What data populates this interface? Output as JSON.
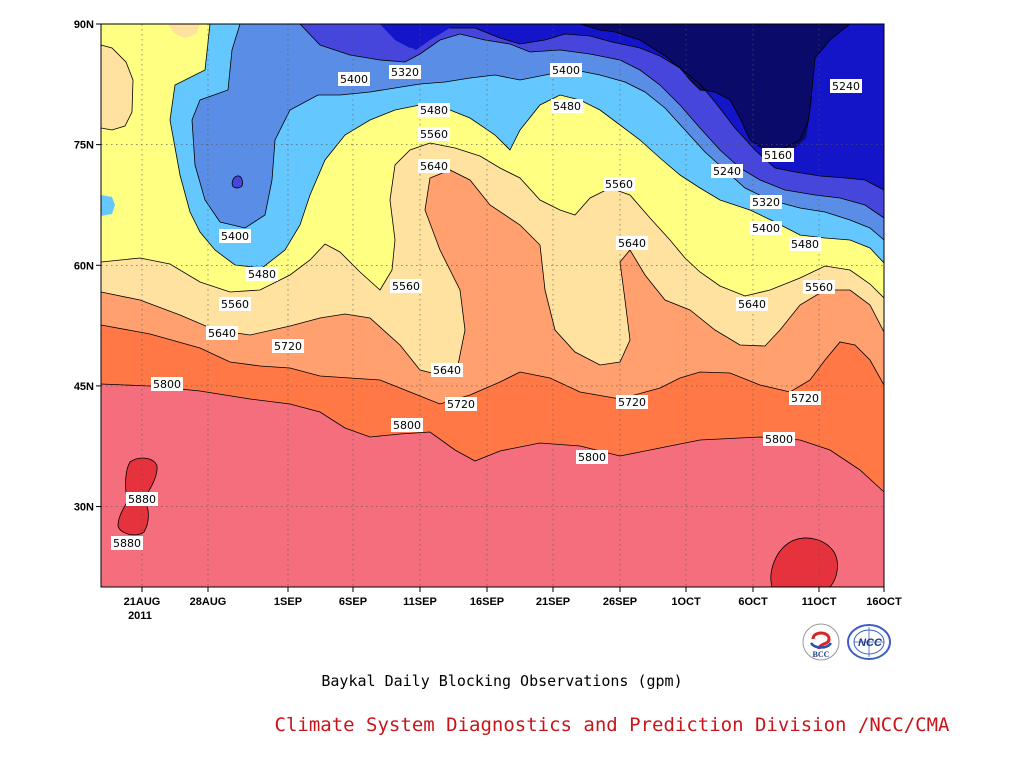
{
  "chart_data": {
    "type": "heatmap",
    "title": "Baykal Daily Blocking Observations (gpm)",
    "subtitle": "Climate System Diagnostics and Prediction Division /NCC/CMA",
    "x_tick_labels": [
      "21AUG",
      "28AUG",
      "1SEP",
      "6SEP",
      "11SEP",
      "16SEP",
      "21SEP",
      "26SEP",
      "1OCT",
      "6OCT",
      "11OCT",
      "16OCT"
    ],
    "x_year_label": "2011",
    "y_tick_labels": [
      "90N",
      "75N",
      "60N",
      "45N",
      "30N"
    ],
    "ylim_deg": [
      20,
      90
    ],
    "contour_levels": [
      5160,
      5240,
      5320,
      5400,
      5480,
      5560,
      5640,
      5720,
      5800,
      5880
    ],
    "contour_labels": [
      "5320",
      "5400",
      "5240",
      "5400",
      "5480",
      "5480",
      "5560",
      "5640",
      "5160",
      "5240",
      "5560",
      "5320",
      "5400",
      "5400",
      "5480",
      "5640",
      "5480",
      "5560",
      "5560",
      "5640",
      "5560",
      "5720",
      "5640",
      "5640",
      "5720",
      "5800",
      "5720",
      "5720",
      "5800",
      "5800",
      "5800",
      "5880",
      "5880"
    ]
  },
  "colors": {
    "below_5160": "#0a0a6a",
    "band_5160_5240": "#1414c8",
    "band_5240_5320": "#4646dc",
    "band_5320_5400": "#5a8ee6",
    "band_5400_5480": "#64c8ff",
    "band_5480_5560": "#ffff82",
    "band_5560_5640": "#ffe1a0",
    "band_5640_5720": "#ffa06e",
    "band_5720_5800": "#ff7846",
    "band_5800_5880": "#f56e7d",
    "above_5880": "#e6323c"
  },
  "logos": {
    "left_text": "BCC",
    "right_text": "NCC"
  }
}
